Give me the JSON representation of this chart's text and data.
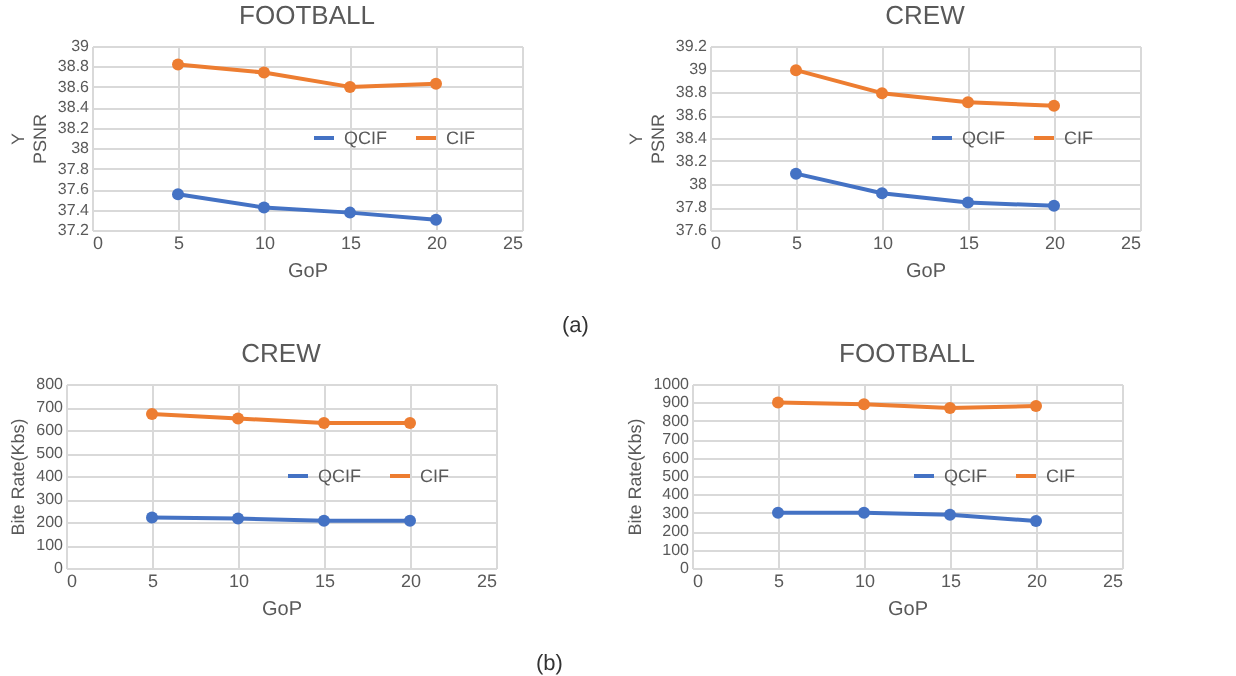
{
  "chart_data": [
    {
      "type": "line",
      "title": "FOOTBALL",
      "xlabel": "GoP",
      "ylabel": "Y\nPSNR",
      "x": [
        5,
        10,
        15,
        20
      ],
      "xlim": [
        0,
        25
      ],
      "xticks": [
        0,
        5,
        10,
        15,
        20,
        25
      ],
      "ylim": [
        37.2,
        39
      ],
      "yticks": [
        37.2,
        37.4,
        37.6,
        37.8,
        38,
        38.2,
        38.4,
        38.6,
        38.8,
        39
      ],
      "grid": true,
      "legend": "right",
      "marker": "circle",
      "annotations": [
        "(a)"
      ],
      "series": [
        {
          "name": "QCIF",
          "color": "#4472c4",
          "values": [
            37.55,
            37.42,
            37.37,
            37.3
          ]
        },
        {
          "name": "CIF",
          "color": "#ed7d31",
          "values": [
            38.82,
            38.74,
            38.6,
            38.63
          ]
        }
      ]
    },
    {
      "type": "line",
      "title": "CREW",
      "xlabel": "GoP",
      "ylabel": "Y\nPSNR",
      "x": [
        5,
        10,
        15,
        20
      ],
      "xlim": [
        0,
        25
      ],
      "xticks": [
        0,
        5,
        10,
        15,
        20,
        25
      ],
      "ylim": [
        37.6,
        39.2
      ],
      "yticks": [
        37.6,
        37.8,
        38,
        38.2,
        38.4,
        38.6,
        38.8,
        39,
        39.2
      ],
      "grid": true,
      "legend": "right",
      "marker": "circle",
      "series": [
        {
          "name": "QCIF",
          "color": "#4472c4",
          "values": [
            38.09,
            37.92,
            37.84,
            37.81
          ]
        },
        {
          "name": "CIF",
          "color": "#ed7d31",
          "values": [
            38.99,
            38.79,
            38.71,
            38.68
          ]
        }
      ]
    },
    {
      "type": "line",
      "title": "CREW",
      "xlabel": "GoP",
      "ylabel": "Bite Rate(Kbs)",
      "x": [
        5,
        10,
        15,
        20
      ],
      "xlim": [
        0,
        25
      ],
      "xticks": [
        0,
        5,
        10,
        15,
        20,
        25
      ],
      "ylim": [
        0,
        800
      ],
      "yticks": [
        0,
        100,
        200,
        300,
        400,
        500,
        600,
        700,
        800
      ],
      "grid": true,
      "legend": "right",
      "marker": "circle",
      "annotations": [
        "(b)"
      ],
      "series": [
        {
          "name": "QCIF",
          "color": "#4472c4",
          "values": [
            220,
            215,
            205,
            205
          ]
        },
        {
          "name": "CIF",
          "color": "#ed7d31",
          "values": [
            670,
            650,
            630,
            630
          ]
        }
      ]
    },
    {
      "type": "line",
      "title": "FOOTBALL",
      "xlabel": "GoP",
      "ylabel": "Bite Rate(Kbs)",
      "x": [
        5,
        10,
        15,
        20
      ],
      "xlim": [
        0,
        25
      ],
      "xticks": [
        0,
        5,
        10,
        15,
        20,
        25
      ],
      "ylim": [
        0,
        1000
      ],
      "yticks": [
        0,
        100,
        200,
        300,
        400,
        500,
        600,
        700,
        800,
        900,
        1000
      ],
      "grid": true,
      "legend": "right",
      "marker": "circle",
      "series": [
        {
          "name": "QCIF",
          "color": "#4472c4",
          "values": [
            300,
            300,
            290,
            255
          ]
        },
        {
          "name": "CIF",
          "color": "#ed7d31",
          "values": [
            900,
            890,
            870,
            880
          ]
        }
      ]
    }
  ]
}
